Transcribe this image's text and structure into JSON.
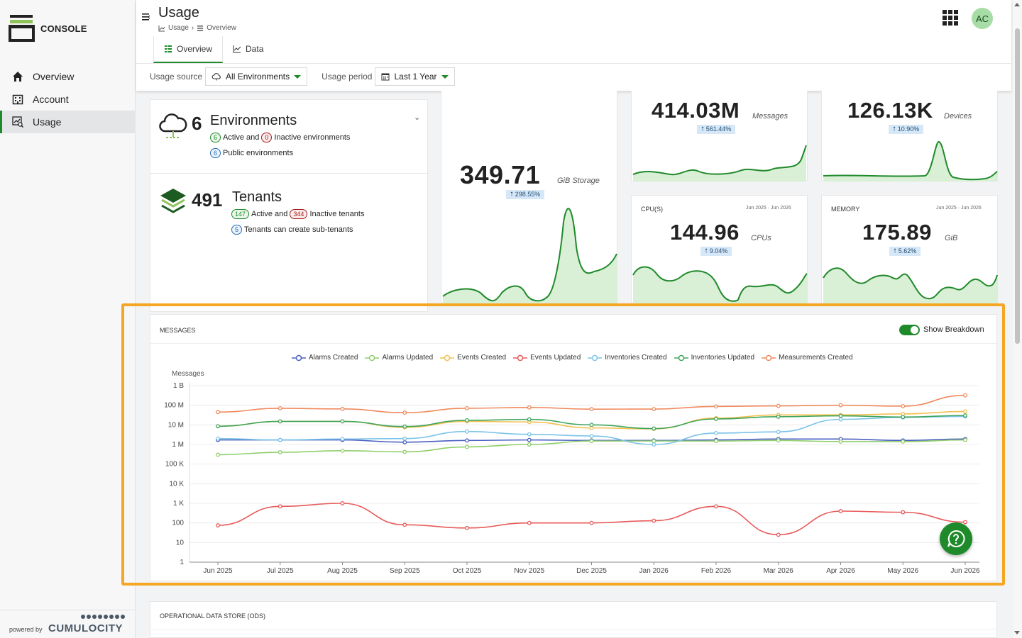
{
  "app": {
    "brand": "CONSOLE",
    "powered_by": "powered by",
    "vendor": "CUMULOCITY"
  },
  "sidebar": {
    "items": [
      {
        "label": "Overview",
        "icon": "home-icon"
      },
      {
        "label": "Account",
        "icon": "building-icon"
      },
      {
        "label": "Usage",
        "icon": "usage-icon",
        "active": true
      }
    ]
  },
  "header": {
    "title": "Usage",
    "breadcrumb": [
      "Usage",
      "Overview"
    ],
    "avatar": "AC",
    "tabs": [
      {
        "label": "Overview",
        "active": true
      },
      {
        "label": "Data"
      }
    ]
  },
  "filters": {
    "source_label": "Usage source",
    "source_value": "All Environments",
    "period_label": "Usage period",
    "period_value": "Last 1 Year"
  },
  "environments": {
    "count": "6",
    "label": "Environments",
    "active": "6",
    "active_text": "Active and",
    "inactive": "0",
    "inactive_text": "Inactive environments",
    "public": "6",
    "public_text": "Public environments"
  },
  "tenants": {
    "count": "491",
    "label": "Tenants",
    "active": "147",
    "active_text": "Active and",
    "inactive": "344",
    "inactive_text": "Inactive tenants",
    "sub": "5",
    "sub_text": "Tenants can create sub-tenants"
  },
  "stats": {
    "storage": {
      "value": "349.71",
      "unit": "GiB Storage",
      "change": "298.55%"
    },
    "messages": {
      "value": "414.03M",
      "unit": "Messages",
      "change": "561.44%"
    },
    "devices": {
      "value": "126.13K",
      "unit": "Devices",
      "change": "10.90%"
    },
    "cpu": {
      "title": "CPU(S)",
      "range": "Jun 2025 · Jun 2026",
      "value": "144.96",
      "unit": "CPUs",
      "change": "9.04%"
    },
    "memory": {
      "title": "MEMORY",
      "range": "Jun 2025 · Jun 2026",
      "value": "175.89",
      "unit": "GiB",
      "change": "5.62%"
    }
  },
  "messages_panel": {
    "title": "MESSAGES",
    "toggle_label": "Show Breakdown",
    "toggle_on": true
  },
  "ods_panel": {
    "title": "OPERATIONAL DATA STORE (ODS)"
  },
  "colors": {
    "accent": "#1f8a2a",
    "highlight": "#f5a623"
  },
  "chart_data": {
    "type": "line",
    "ylabel": "Messages",
    "yscale": "log",
    "ylim": [
      1,
      1000000000
    ],
    "yticks": [
      "1 B",
      "100 M",
      "10 M",
      "1 M",
      "100 K",
      "10 K",
      "1 K",
      "100",
      "10",
      "1"
    ],
    "categories": [
      "Jun 2025",
      "Jul 2025",
      "Aug 2025",
      "Sep 2025",
      "Oct 2025",
      "Nov 2025",
      "Dec 2025",
      "Jan 2026",
      "Feb 2026",
      "Mar 2026",
      "Apr 2026",
      "May 2026",
      "Jun 2026"
    ],
    "series": [
      {
        "name": "Alarms Created",
        "color": "#4a5fc1",
        "values": [
          1700000,
          1700000,
          1700000,
          1300000,
          1600000,
          1700000,
          1600000,
          1600000,
          1700000,
          1900000,
          1900000,
          1600000,
          1900000
        ]
      },
      {
        "name": "Alarms Updated",
        "color": "#8fcf6a",
        "values": [
          300000,
          400000,
          480000,
          420000,
          750000,
          1000000,
          1500000,
          1500000,
          1500000,
          1600000,
          1400000,
          1400000,
          1700000
        ]
      },
      {
        "name": "Events Created",
        "color": "#f3c04f",
        "values": [
          8500000,
          15000000,
          15000000,
          7500000,
          15000000,
          14000000,
          7000000,
          6200000,
          22000000,
          32000000,
          32000000,
          36000000,
          48000000
        ]
      },
      {
        "name": "Events Updated",
        "color": "#e85a5a",
        "values": [
          75,
          700,
          1000,
          80,
          55,
          100,
          100,
          130,
          700,
          25,
          400,
          350,
          110
        ]
      },
      {
        "name": "Inventories Created",
        "color": "#7cc3e8",
        "values": [
          2000000,
          1700000,
          1900000,
          2000000,
          4600000,
          3300000,
          2700000,
          1000000,
          3800000,
          4400000,
          19000000,
          24000000,
          27000000
        ]
      },
      {
        "name": "Inventories Updated",
        "color": "#3fa55c",
        "values": [
          8500000,
          15000000,
          15000000,
          8200000,
          17000000,
          19000000,
          10000000,
          6500000,
          20000000,
          26000000,
          29000000,
          25000000,
          30000000
        ]
      },
      {
        "name": "Measurements Created",
        "color": "#f08a5d",
        "values": [
          45000000,
          70000000,
          65000000,
          42000000,
          70000000,
          77000000,
          63000000,
          64000000,
          87000000,
          93000000,
          100000000,
          90000000,
          320000000
        ]
      }
    ]
  }
}
